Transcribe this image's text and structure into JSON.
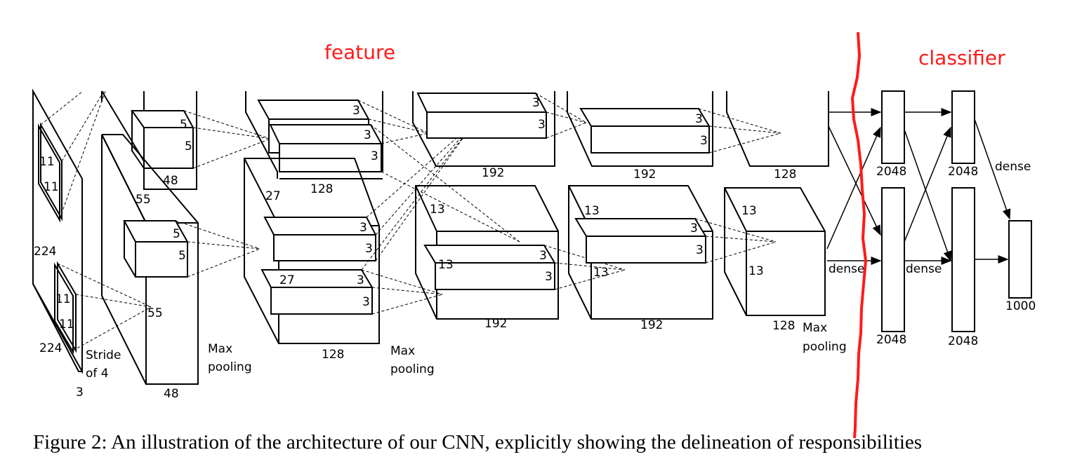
{
  "annotations": {
    "feature": "feature",
    "classifier": "classifier",
    "divider_color": "#ff1a1a"
  },
  "input": {
    "height": "224",
    "width": "224",
    "depth": "3",
    "kernel_top_a": "11",
    "kernel_top_b": "11",
    "kernel_bot_a": "11",
    "kernel_bot_b": "11",
    "stride": "Stride",
    "stride_of": "of 4"
  },
  "conv1": {
    "top_k_a": "5",
    "top_k_b": "5",
    "top_depth": "48",
    "size": "55",
    "bot_k_a": "5",
    "bot_k_b": "5",
    "bot_size": "55",
    "bot_depth": "48",
    "pool_a": "Max",
    "pool_b": "pooling"
  },
  "conv2": {
    "top_k_a": "3",
    "top_k_b": "3",
    "top_k_c": "3",
    "top_depth": "128",
    "size": "27",
    "bot_k_a": "3",
    "bot_k_b": "3",
    "bot_k_c": "3",
    "bot_k_d": "3",
    "bot_size": "27",
    "bot_depth": "128",
    "pool_a": "Max",
    "pool_b": "pooling"
  },
  "conv3": {
    "top_k_a": "3",
    "top_k_b": "3",
    "top_depth": "192",
    "size": "13",
    "bot_k_a": "3",
    "bot_k_b": "3",
    "bot_size": "13",
    "bot_depth": "192"
  },
  "conv4": {
    "top_k_a": "3",
    "top_k_b": "3",
    "top_depth": "192",
    "size": "13",
    "bot_k_a": "3",
    "bot_k_b": "3",
    "bot_size": "13",
    "bot_depth": "192"
  },
  "conv5": {
    "top_depth": "128",
    "size": "13",
    "bot_size": "13",
    "bot_depth": "128",
    "pool_a": "Max",
    "pool_b": "pooling"
  },
  "dense": {
    "fc1_top": "2048",
    "fc2_top": "2048",
    "fc1_bot": "2048",
    "fc2_bot": "2048",
    "out": "1000",
    "label_a": "dense",
    "label_b": "dense",
    "label_c": "dense"
  },
  "caption": "Figure 2: An illustration of the architecture of our CNN, explicitly showing the delineation of responsibilities"
}
